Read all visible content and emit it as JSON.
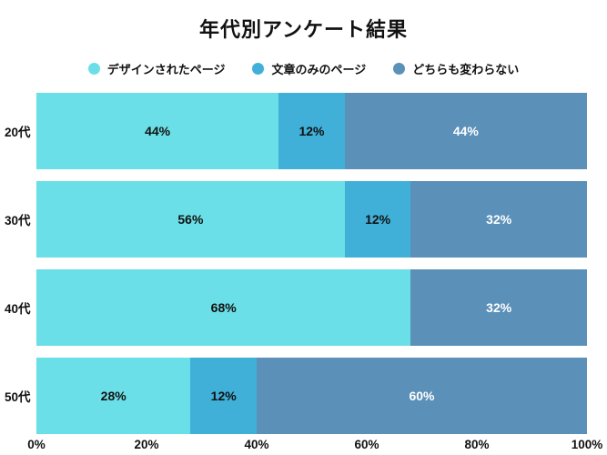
{
  "title": "年代別アンケート結果",
  "chart_data": {
    "type": "bar",
    "orientation": "horizontal",
    "stacked": true,
    "title": "年代別アンケート結果",
    "categories": [
      "20代",
      "30代",
      "40代",
      "50代"
    ],
    "series": [
      {
        "name": "デザインされたページ",
        "color": "#6BDFE7",
        "label_color": "#111111",
        "values": [
          44,
          56,
          68,
          28
        ]
      },
      {
        "name": "文章のみのページ",
        "color": "#41B0D8",
        "label_color": "#111111",
        "values": [
          12,
          12,
          0,
          12
        ]
      },
      {
        "name": "どちらも変わらない",
        "color": "#5B90B9",
        "label_color": "#ffffff",
        "values": [
          44,
          32,
          32,
          60
        ]
      }
    ],
    "value_suffix": "%",
    "x_ticks": [
      "0%",
      "20%",
      "40%",
      "60%",
      "80%",
      "100%"
    ],
    "xlim": [
      0,
      100
    ],
    "legend_position": "top",
    "grid": false,
    "background": "#ffffff"
  }
}
